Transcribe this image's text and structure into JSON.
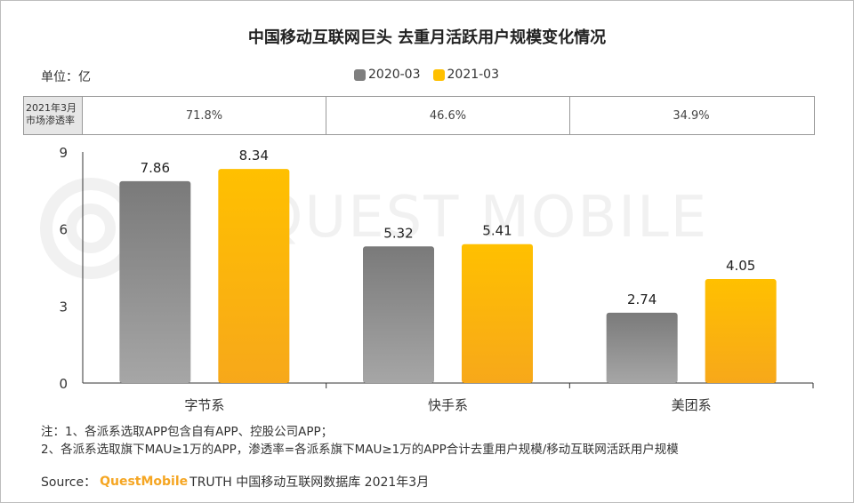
{
  "title": "中国移动互联网巨头 去重月活跃用户规模变化情况",
  "unit": "单位：亿",
  "legend": [
    {
      "label": "2020-03",
      "color": "#7f7f7f"
    },
    {
      "label": "2021-03",
      "color": "#ffc000"
    }
  ],
  "penetration": {
    "label_line1": "2021年3月",
    "label_line2": "市场渗透率",
    "values": [
      "71.8%",
      "46.6%",
      "34.9%"
    ]
  },
  "watermark": "QUEST MOBILE",
  "chart_data": {
    "type": "bar",
    "categories": [
      "字节系",
      "快手系",
      "美团系"
    ],
    "series": [
      {
        "name": "2020-03",
        "values": [
          7.86,
          5.32,
          2.74
        ],
        "color": "#7f7f7f"
      },
      {
        "name": "2021-03",
        "values": [
          8.34,
          5.41,
          4.05
        ],
        "color": "#ffc000"
      }
    ],
    "value_labels": [
      [
        "7.86",
        "5.32",
        "2.74"
      ],
      [
        "8.34",
        "5.41",
        "4.05"
      ]
    ],
    "yticks": [
      "0",
      "3",
      "6",
      "9"
    ],
    "ylim": [
      0,
      9
    ],
    "grid": false
  },
  "notes": [
    "注：1、各派系选取APP包含自有APP、控股公司APP；",
    "2、各派系选取旗下MAU≥1万的APP，渗透率=各派系旗下MAU≥1万的APP合计去重用户规模/移动互联网活跃用户规模"
  ],
  "source": {
    "prefix": "Source：",
    "brand": "QuestMobile",
    "suffix": "TRUTH 中国移动互联网数据库 2021年3月"
  }
}
